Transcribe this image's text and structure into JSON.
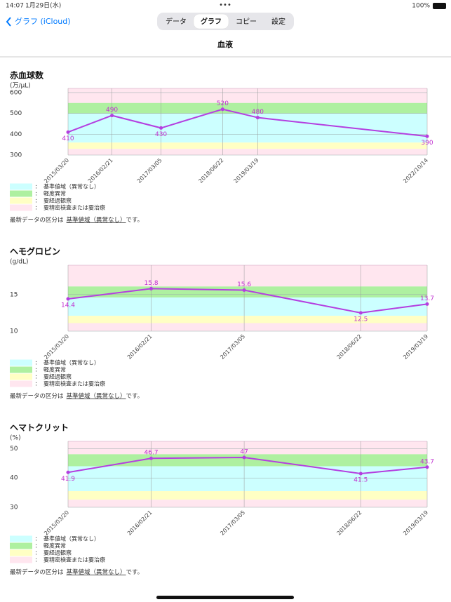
{
  "status_bar": {
    "time": "14:07",
    "date": "1月29日(水)",
    "battery": "100%"
  },
  "nav": {
    "back": "グラフ (iCloud)",
    "segments": [
      "データ",
      "グラフ",
      "コピー",
      "設定"
    ],
    "selected": 1,
    "title": "血液"
  },
  "chart_data": [
    {
      "type": "line",
      "title": "赤血球数",
      "y_label": "(万/μL)",
      "x": [
        "2015/03/20",
        "2016/02/21",
        "2017/03/05",
        "2018/06/22",
        "2019/03/19",
        "2022/10/14"
      ],
      "series": [
        {
          "color": "#b43fe0",
          "values": [
            410,
            490,
            430,
            520,
            480,
            390
          ]
        }
      ],
      "ylim": [
        300,
        620
      ],
      "yticks": [
        300,
        400,
        500,
        600
      ],
      "bands": [
        {
          "from": 550,
          "to": 620,
          "color": "#ffe6ef"
        },
        {
          "from": 500,
          "to": 550,
          "color": "#aef0a0"
        },
        {
          "from": 360,
          "to": 500,
          "color": "#ccffff"
        },
        {
          "from": 330,
          "to": 360,
          "color": "#ffffc4"
        },
        {
          "from": 300,
          "to": 330,
          "color": "#ffe6ef"
        }
      ],
      "legend": [
        {
          "label": "基準値域（異常なし）",
          "color": "#ccffff"
        },
        {
          "label": "軽度異常",
          "color": "#aef0a0"
        },
        {
          "label": "要経過観察",
          "color": "#ffffc4"
        },
        {
          "label": "要精密検査または要治療",
          "color": "#ffe6ef"
        }
      ],
      "note": {
        "prefix": "最新データの区分は",
        "status": "基準値域（異常なし）",
        "suffix": "です。"
      }
    },
    {
      "type": "line",
      "title": "ヘモグロビン",
      "y_label": "(g/dL)",
      "x": [
        "2015/03/20",
        "2016/02/21",
        "2017/03/05",
        "2018/06/22",
        "2019/03/19"
      ],
      "series": [
        {
          "color": "#b43fe0",
          "values": [
            14.4,
            15.8,
            15.6,
            12.5,
            13.7
          ]
        }
      ],
      "ylim": [
        10,
        19
      ],
      "yticks": [
        10,
        15
      ],
      "bands": [
        {
          "from": 16.1,
          "to": 19,
          "color": "#ffe6ef"
        },
        {
          "from": 14.6,
          "to": 16.1,
          "color": "#aef0a0"
        },
        {
          "from": 12.1,
          "to": 14.6,
          "color": "#ccffff"
        },
        {
          "from": 11.1,
          "to": 12.1,
          "color": "#ffffc4"
        },
        {
          "from": 10,
          "to": 11.1,
          "color": "#ffe6ef"
        }
      ],
      "legend": [
        {
          "label": "基準値域（異常なし）",
          "color": "#ccffff"
        },
        {
          "label": "軽度異常",
          "color": "#aef0a0"
        },
        {
          "label": "要経過観察",
          "color": "#ffffc4"
        },
        {
          "label": "要精密検査または要治療",
          "color": "#ffe6ef"
        }
      ],
      "note": {
        "prefix": "最新データの区分は",
        "status": "基準値域（異常なし）",
        "suffix": "です。"
      }
    },
    {
      "type": "line",
      "title": "ヘマトクリット",
      "y_label": "(%)",
      "x": [
        "2015/03/20",
        "2016/02/21",
        "2017/03/05",
        "2018/06/22",
        "2019/03/19"
      ],
      "series": [
        {
          "color": "#b43fe0",
          "values": [
            41.9,
            46.7,
            47,
            41.5,
            43.7
          ]
        }
      ],
      "ylim": [
        30,
        52.5
      ],
      "yticks": [
        30,
        40,
        50
      ],
      "bands": [
        {
          "from": 48.1,
          "to": 52.5,
          "color": "#ffe6ef"
        },
        {
          "from": 44,
          "to": 48.1,
          "color": "#aef0a0"
        },
        {
          "from": 35.5,
          "to": 44,
          "color": "#ccffff"
        },
        {
          "from": 32.6,
          "to": 35.5,
          "color": "#ffffc4"
        },
        {
          "from": 30,
          "to": 32.6,
          "color": "#ffe6ef"
        }
      ],
      "legend": [
        {
          "label": "基準値域（異常なし）",
          "color": "#ccffff"
        },
        {
          "label": "軽度異常",
          "color": "#aef0a0"
        },
        {
          "label": "要経過観察",
          "color": "#ffffc4"
        },
        {
          "label": "要精密検査または要治療",
          "color": "#ffe6ef"
        }
      ],
      "note": {
        "prefix": "最新データの区分は",
        "status": "基準値域（異常なし）",
        "suffix": "です。"
      }
    }
  ]
}
